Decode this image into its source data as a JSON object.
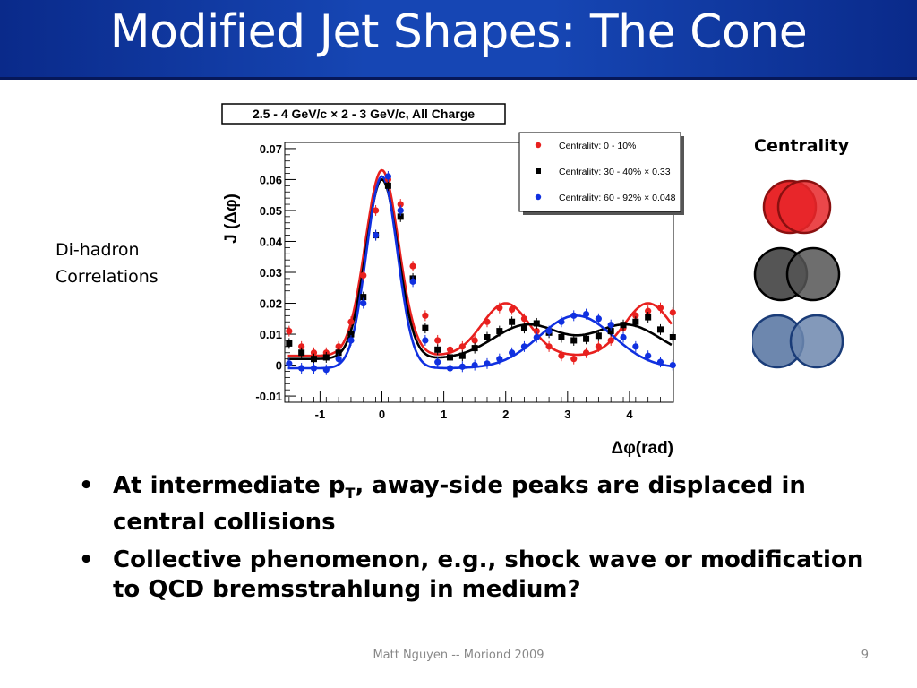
{
  "slide": {
    "title": "Modified Jet Shapes:  The Cone",
    "side_label_lines": [
      "Di-hadron",
      "Correlations"
    ],
    "centrality_title": "Centrality",
    "bullets": [
      {
        "prefix": "At intermediate p",
        "sub": "T",
        "suffix": ", away-side peaks are displaced in central collisions"
      },
      {
        "text": "Collective phenomenon, e.g., shock wave or modification to QCD bremsstrahlung in medium?"
      }
    ],
    "footer": "Matt Nguyen -- Moriond 2009",
    "page_number": "9"
  },
  "centrality_icons": [
    {
      "fill": "#e8272a",
      "stroke": "#8a1010",
      "overlap": "large"
    },
    {
      "fill": "#555555",
      "stroke": "#000000",
      "overlap": "medium"
    },
    {
      "fill": "#6d87ae",
      "stroke": "#1a3c78",
      "overlap": "small"
    }
  ],
  "chart_data": {
    "type": "scatter",
    "title": "2.5 - 4 GeV/c × 2 - 3 GeV/c,  All Charge",
    "xlabel": "Δφ(rad)",
    "ylabel": "J (Δφ)",
    "xlim": [
      -1.57,
      4.71
    ],
    "ylim": [
      -0.012,
      0.072
    ],
    "x_ticks": [
      "-1",
      "0",
      "1",
      "2",
      "3",
      "4"
    ],
    "y_ticks": [
      "-0.01",
      "0",
      "0.01",
      "0.02",
      "0.03",
      "0.04",
      "0.05",
      "0.06",
      "0.07"
    ],
    "legend_position": "top-right",
    "series": [
      {
        "name": "Centrality:  0 - 10%",
        "color": "#e8201e",
        "marker": "circle",
        "x": [
          -1.5,
          -1.3,
          -1.1,
          -0.9,
          -0.7,
          -0.5,
          -0.3,
          -0.1,
          0.1,
          0.3,
          0.5,
          0.7,
          0.9,
          1.1,
          1.3,
          1.5,
          1.7,
          1.9,
          2.1,
          2.3,
          2.5,
          2.7,
          2.9,
          3.1,
          3.3,
          3.5,
          3.7,
          3.9,
          4.1,
          4.3,
          4.5,
          4.7
        ],
        "y": [
          0.011,
          0.006,
          0.004,
          0.004,
          0.006,
          0.014,
          0.029,
          0.05,
          0.06,
          0.052,
          0.032,
          0.016,
          0.008,
          0.005,
          0.006,
          0.008,
          0.014,
          0.0185,
          0.018,
          0.015,
          0.011,
          0.006,
          0.003,
          0.002,
          0.004,
          0.006,
          0.008,
          0.012,
          0.016,
          0.0175,
          0.0185,
          0.017
        ]
      },
      {
        "name": "Centrality: 30 - 40% × 0.33",
        "color": "#000000",
        "marker": "square",
        "x": [
          -1.5,
          -1.3,
          -1.1,
          -0.9,
          -0.7,
          -0.5,
          -0.3,
          -0.1,
          0.1,
          0.3,
          0.5,
          0.7,
          0.9,
          1.1,
          1.3,
          1.5,
          1.7,
          1.9,
          2.1,
          2.3,
          2.5,
          2.7,
          2.9,
          3.1,
          3.3,
          3.5,
          3.7,
          3.9,
          4.1,
          4.3,
          4.5,
          4.7
        ],
        "y": [
          0.007,
          0.004,
          0.002,
          0.0025,
          0.004,
          0.01,
          0.022,
          0.042,
          0.058,
          0.048,
          0.028,
          0.012,
          0.005,
          0.0025,
          0.003,
          0.0055,
          0.009,
          0.011,
          0.014,
          0.012,
          0.0135,
          0.0105,
          0.009,
          0.008,
          0.0085,
          0.0095,
          0.011,
          0.013,
          0.014,
          0.0155,
          0.0115,
          0.009
        ]
      },
      {
        "name": "Centrality: 60 - 92% × 0.048",
        "color": "#1030e0",
        "marker": "circle",
        "x": [
          -1.5,
          -1.3,
          -1.1,
          -0.9,
          -0.7,
          -0.5,
          -0.3,
          -0.1,
          0.1,
          0.3,
          0.5,
          0.7,
          0.9,
          1.1,
          1.3,
          1.5,
          1.7,
          1.9,
          2.1,
          2.3,
          2.5,
          2.7,
          2.9,
          3.1,
          3.3,
          3.5,
          3.7,
          3.9,
          4.1,
          4.3,
          4.5,
          4.7
        ],
        "y": [
          0.0005,
          -0.001,
          -0.001,
          -0.0015,
          0.002,
          0.008,
          0.02,
          0.042,
          0.061,
          0.05,
          0.027,
          0.008,
          0.001,
          -0.001,
          -0.0005,
          0.0,
          0.0005,
          0.002,
          0.004,
          0.006,
          0.009,
          0.011,
          0.014,
          0.016,
          0.0165,
          0.015,
          0.013,
          0.009,
          0.006,
          0.003,
          0.001,
          0.0
        ]
      }
    ],
    "fit_curves": [
      {
        "color": "#e8201e",
        "base": 0.003,
        "near_amp": 0.06,
        "near_sigma": 0.27,
        "away_amp": 0.017,
        "away_sigma": 0.38,
        "away_centers": [
          2.0,
          4.3
        ]
      },
      {
        "color": "#000000",
        "base": 0.002,
        "near_amp": 0.058,
        "near_sigma": 0.26,
        "away_amp": 0.011,
        "away_sigma": 0.55,
        "away_centers": [
          2.35,
          3.95
        ]
      },
      {
        "color": "#1030e0",
        "base": -0.001,
        "near_amp": 0.062,
        "near_sigma": 0.25,
        "away_amp": 0.017,
        "away_sigma": 0.6,
        "away_centers": [
          3.14
        ]
      }
    ]
  }
}
